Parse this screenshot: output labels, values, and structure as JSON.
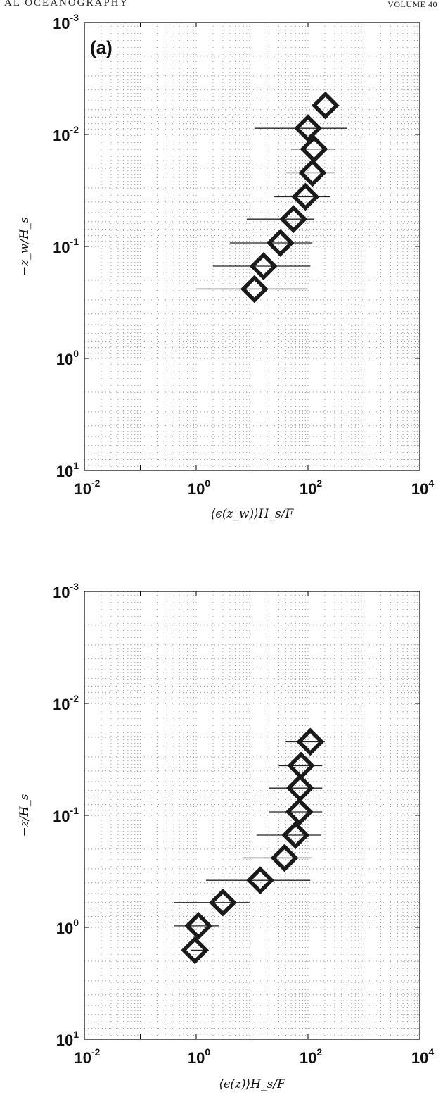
{
  "page_header": {
    "left": "AL OCEANOGRAPHY",
    "right": "VOLUME 40"
  },
  "colors": {
    "marker": "#1a1a1a",
    "errorbar": "#222222",
    "grid": "#9a9a9a",
    "axes": "#000000"
  },
  "chart_data": [
    {
      "type": "scatter",
      "panel_label": "(a)",
      "xlabel": "⟨ϵ(z_w)⟩H_s/F",
      "ylabel": "−z_w/H_s",
      "xscale": "log",
      "yscale": "log",
      "y_reversed": true,
      "xlim": [
        0.01,
        10000
      ],
      "ylim": [
        0.001,
        10
      ],
      "x_tick_labels": [
        "10^-2",
        "10^0",
        "10^2",
        "10^4"
      ],
      "y_tick_labels": [
        "10^-3",
        "10^-2",
        "10^-1",
        "10^0",
        "10^1"
      ],
      "grid": "dotted",
      "marker": "diamond",
      "points": [
        {
          "x": 205,
          "y": 0.0055,
          "xerr": null
        },
        {
          "x": 100,
          "y": 0.0088,
          "xerr": [
            11,
            500
          ]
        },
        {
          "x": 128,
          "y": 0.0135,
          "xerr": [
            50,
            300
          ]
        },
        {
          "x": 120,
          "y": 0.022,
          "xerr": [
            40,
            300
          ]
        },
        {
          "x": 90,
          "y": 0.036,
          "xerr": [
            25,
            250
          ]
        },
        {
          "x": 55,
          "y": 0.057,
          "xerr": [
            8,
            130
          ]
        },
        {
          "x": 32,
          "y": 0.093,
          "xerr": [
            4,
            120
          ]
        },
        {
          "x": 16,
          "y": 0.15,
          "xerr": [
            2,
            110
          ]
        },
        {
          "x": 11,
          "y": 0.24,
          "xerr": [
            1,
            95
          ]
        }
      ]
    },
    {
      "type": "scatter",
      "panel_label": "",
      "xlabel": "⟨ϵ(z)⟩H_s/F",
      "ylabel": "−z/H_s",
      "xscale": "log",
      "yscale": "log",
      "y_reversed": true,
      "xlim": [
        0.01,
        10000
      ],
      "ylim": [
        0.001,
        10
      ],
      "x_tick_labels": [
        "10^-2",
        "10^0",
        "10^2",
        "10^4"
      ],
      "y_tick_labels": [
        "10^-3",
        "10^-2",
        "10^-1",
        "10^0",
        "10^1"
      ],
      "grid": "dotted",
      "marker": "diamond",
      "points": [
        {
          "x": 110,
          "y": 0.022,
          "xerr": [
            40,
            200
          ]
        },
        {
          "x": 75,
          "y": 0.036,
          "xerr": [
            30,
            180
          ]
        },
        {
          "x": 72,
          "y": 0.057,
          "xerr": [
            20,
            180
          ]
        },
        {
          "x": 70,
          "y": 0.093,
          "xerr": [
            20,
            180
          ]
        },
        {
          "x": 60,
          "y": 0.15,
          "xerr": [
            12,
            170
          ]
        },
        {
          "x": 38,
          "y": 0.24,
          "xerr": [
            7,
            120
          ]
        },
        {
          "x": 14,
          "y": 0.38,
          "xerr": [
            1.5,
            110
          ]
        },
        {
          "x": 3,
          "y": 0.6,
          "xerr": [
            0.4,
            9
          ]
        },
        {
          "x": 1.1,
          "y": 0.97,
          "xerr": [
            0.4,
            2.6
          ]
        },
        {
          "x": 0.95,
          "y": 1.6,
          "xerr": [
            0.8,
            1.6
          ]
        }
      ]
    }
  ]
}
